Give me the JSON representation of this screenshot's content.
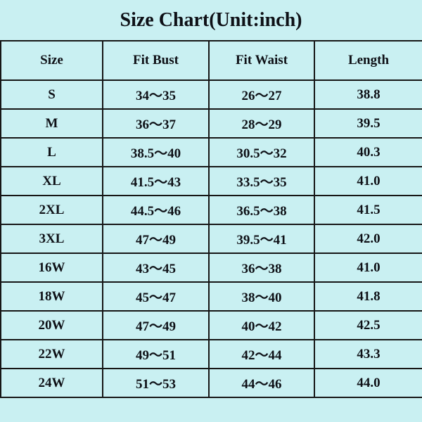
{
  "page": {
    "title": "Size Chart(Unit:inch)",
    "background_color": "#c9f0f2",
    "border_color": "#161616",
    "text_color": "#0e1016"
  },
  "chart_data": {
    "type": "table",
    "title": "Size Chart(Unit:inch)",
    "columns": [
      "Size",
      "Fit Bust",
      "Fit Waist",
      "Length"
    ],
    "rows": [
      [
        "S",
        "34～35",
        "26～27",
        "38.8"
      ],
      [
        "M",
        "36～37",
        "28～29",
        "39.5"
      ],
      [
        "L",
        "38.5～40",
        "30.5～32",
        "40.3"
      ],
      [
        "XL",
        "41.5～43",
        "33.5～35",
        "41.0"
      ],
      [
        "2XL",
        "44.5～46",
        "36.5～38",
        "41.5"
      ],
      [
        "3XL",
        "47～49",
        "39.5～41",
        "42.0"
      ],
      [
        "16W",
        "43～45",
        "36～38",
        "41.0"
      ],
      [
        "18W",
        "45～47",
        "38～40",
        "41.8"
      ],
      [
        "20W",
        "47～49",
        "40～42",
        "42.5"
      ],
      [
        "22W",
        "49～51",
        "42～44",
        "43.3"
      ],
      [
        "24W",
        "51～53",
        "44～46",
        "44.0"
      ]
    ]
  }
}
